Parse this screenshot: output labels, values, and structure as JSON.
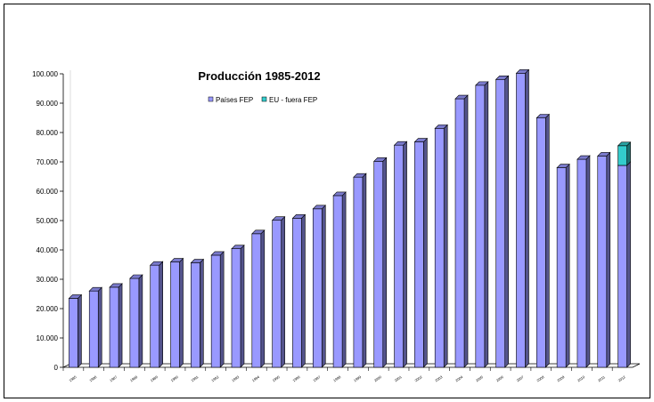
{
  "chart_data": {
    "type": "bar",
    "title": "Producción 1985-2012",
    "xlabel": "",
    "ylabel": "",
    "ylim": [
      0,
      100000
    ],
    "y_ticks": [
      "0",
      "10.000",
      "20.000",
      "30.000",
      "40.000",
      "50.000",
      "60.000",
      "70.000",
      "80.000",
      "90.000",
      "100.000"
    ],
    "categories": [
      "1985",
      "1986",
      "1987",
      "1988",
      "1989",
      "1990",
      "1991",
      "1992",
      "1993",
      "1994",
      "1995",
      "1996",
      "1997",
      "1998",
      "1999",
      "2000",
      "2001",
      "2002",
      "2003",
      "2004",
      "2005",
      "2006",
      "2007",
      "2008",
      "2009",
      "2010",
      "2011",
      "2012"
    ],
    "stacked": true,
    "legend_position": "top-center",
    "series": [
      {
        "name": "Países FEP",
        "color": "#9999ff",
        "values": [
          23500,
          26000,
          27300,
          30300,
          34800,
          35900,
          35600,
          38200,
          40400,
          45500,
          50100,
          50800,
          54000,
          58500,
          64800,
          70200,
          75700,
          76800,
          81400,
          91500,
          96100,
          98100,
          100200,
          85000,
          68000,
          70900,
          72000,
          68800
        ]
      },
      {
        "name": "EU - fuera FEP",
        "color": "#33cccc",
        "values": [
          0,
          0,
          0,
          0,
          0,
          0,
          0,
          0,
          0,
          0,
          0,
          0,
          0,
          0,
          0,
          0,
          0,
          0,
          0,
          0,
          0,
          0,
          0,
          0,
          0,
          0,
          0,
          6700
        ]
      }
    ]
  }
}
